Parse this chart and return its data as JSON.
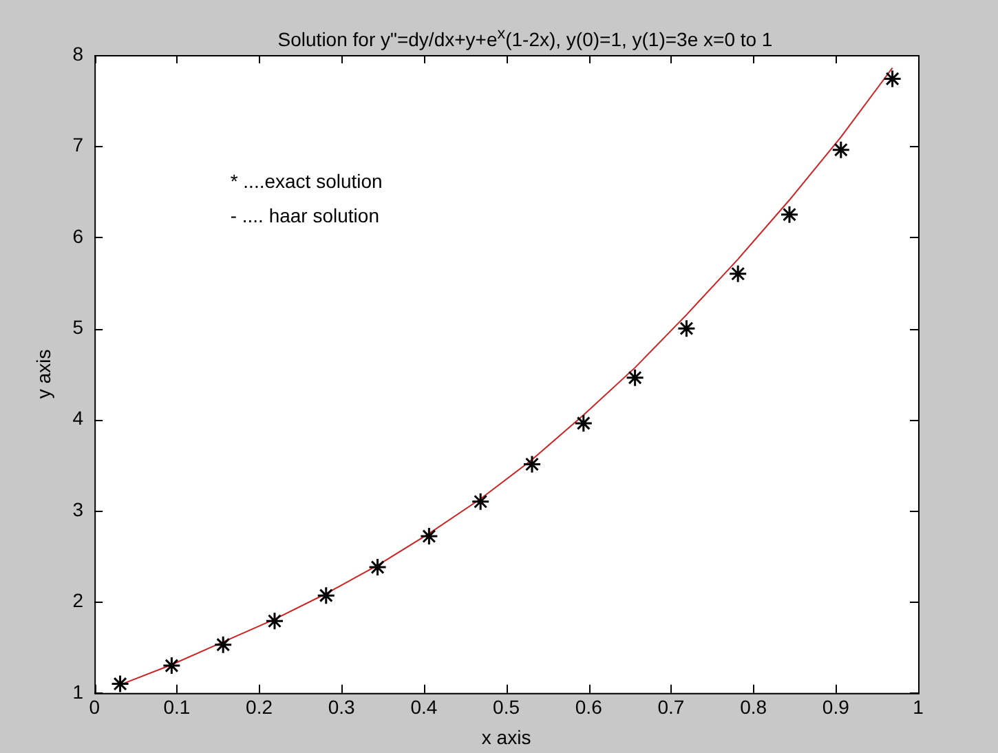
{
  "chart_data": {
    "type": "line",
    "title": "Solution for y\"=dy/dx+y+e$^{x}$(1-2x), y(0)=1, y(1)=3e x=0 to 1",
    "xlabel": "x axis",
    "ylabel": "y axis",
    "xlim": [
      0,
      1
    ],
    "xticks": [
      0,
      0.1,
      0.2,
      0.3,
      0.4,
      0.5,
      0.6,
      0.7,
      0.8,
      0.9,
      1
    ],
    "ylim": [
      1,
      8
    ],
    "yticks": [
      1,
      2,
      3,
      4,
      5,
      6,
      7,
      8
    ],
    "grid": false,
    "legend": false,
    "annotations": [
      "* ....exact solution",
      "- .... haar solution"
    ],
    "x": [
      0.03125,
      0.09375,
      0.15625,
      0.21875,
      0.28125,
      0.34375,
      0.40625,
      0.46875,
      0.53125,
      0.59375,
      0.65625,
      0.71875,
      0.78125,
      0.84375,
      0.90625,
      0.96875
    ],
    "series": [
      {
        "type": "scatter",
        "color": "#000000",
        "marker": "cross",
        "values": [
          1.1,
          1.3,
          1.53,
          1.79,
          2.07,
          2.38,
          2.72,
          3.1,
          3.51,
          3.96,
          4.46,
          5.0,
          5.6,
          6.25,
          6.96,
          7.74
        ]
      },
      {
        "color": "#cc2222",
        "marker": "none",
        "line_style": "solid",
        "values": [
          1.09,
          1.31,
          1.56,
          1.81,
          2.09,
          2.4,
          2.75,
          3.13,
          3.56,
          4.05,
          4.57,
          5.15,
          5.76,
          6.41,
          7.1,
          7.86
        ]
      }
    ]
  }
}
